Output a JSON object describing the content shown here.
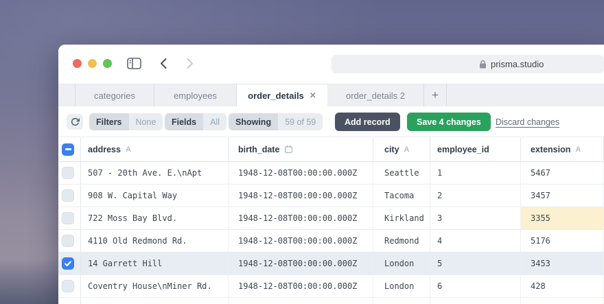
{
  "browser": {
    "url": "prisma.studio"
  },
  "tabs": {
    "items": [
      {
        "label": "categories",
        "active": false
      },
      {
        "label": "employees",
        "active": false
      },
      {
        "label": "order_details",
        "active": true
      },
      {
        "label": "order_details 2",
        "active": false
      }
    ],
    "close_glyph": "✕",
    "new_tab_label": "+"
  },
  "toolbar": {
    "filters_label": "Filters",
    "filters_value": "None",
    "fields_label": "Fields",
    "fields_value": "All",
    "showing_label": "Showing",
    "showing_value": "59 of 59",
    "add_record_label": "Add record",
    "save_label": "Save 4 changes",
    "discard_label": "Discard changes"
  },
  "colors": {
    "accent_blue": "#3b7ff0",
    "save_green": "#2ba15e",
    "add_record_slate": "#4b5363",
    "edited_cell_yellow": "#fbf0cf",
    "selected_row": "#e8edf3"
  },
  "table": {
    "columns": [
      {
        "key": "address",
        "label": "address",
        "type_glyph": "A"
      },
      {
        "key": "birth_date",
        "label": "birth_date",
        "type_glyph": "calendar"
      },
      {
        "key": "city",
        "label": "city",
        "type_glyph": "A"
      },
      {
        "key": "employee_id",
        "label": "employee_id",
        "type_glyph": ""
      },
      {
        "key": "extension",
        "label": "extension",
        "type_glyph": "A"
      }
    ],
    "rows": [
      {
        "checked": false,
        "edited": [],
        "cells": [
          "507 - 20th Ave. E.\\nApt",
          "1948-12-08T00:00:00.000Z",
          "Seattle",
          "1",
          "5467"
        ]
      },
      {
        "checked": false,
        "edited": [],
        "cells": [
          "908 W. Capital Way",
          "1948-12-08T00:00:00.000Z",
          "Tacoma",
          "2",
          "3457"
        ]
      },
      {
        "checked": false,
        "edited": [
          4
        ],
        "cells": [
          "722 Moss Bay Blvd.",
          "1948-12-08T00:00:00.000Z",
          "Kirkland",
          "3",
          "3355"
        ]
      },
      {
        "checked": false,
        "edited": [],
        "cells": [
          "4110 Old Redmond Rd.",
          "1948-12-08T00:00:00.000Z",
          "Redmond",
          "4",
          "5176"
        ]
      },
      {
        "checked": true,
        "edited": [],
        "cells": [
          "14 Garrett Hill",
          "1948-12-08T00:00:00.000Z",
          "London",
          "5",
          "3453"
        ]
      },
      {
        "checked": false,
        "edited": [],
        "cells": [
          "Coventry House\\nMiner Rd.",
          "1948-12-08T00:00:00.000Z",
          "London",
          "6",
          "428"
        ]
      }
    ]
  }
}
